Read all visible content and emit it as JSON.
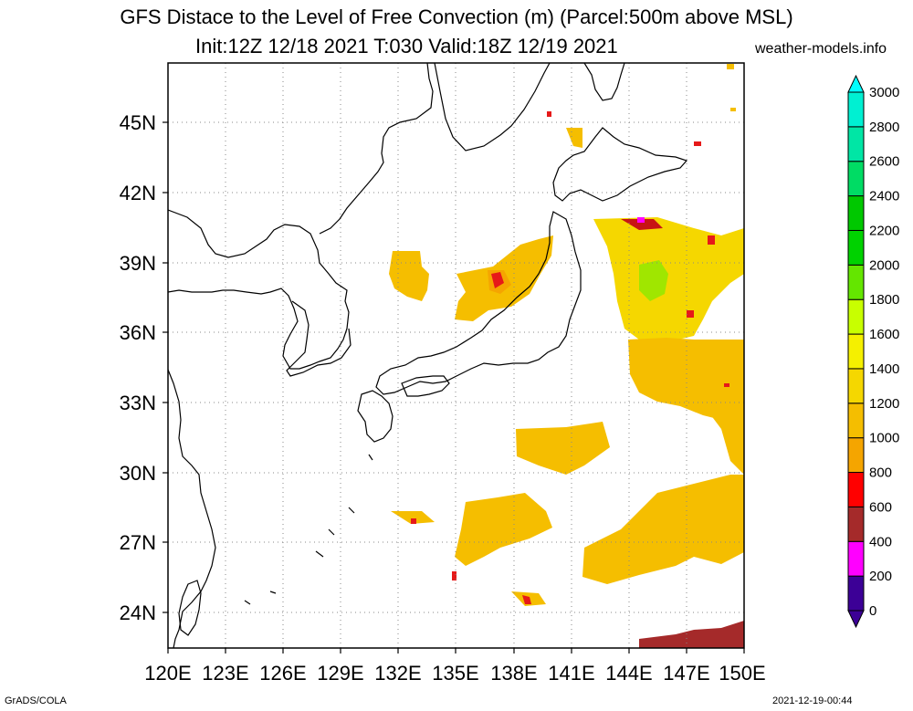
{
  "header": {
    "title_line1": "GFS Distace to the Level of Free Convection (m) (Parcel:500m above MSL)",
    "title_line2": "Init:12Z 12/18 2021 T:030 Valid:18Z 12/19 2021",
    "site": "weather-models.info"
  },
  "footer": {
    "left": "GrADS/COLA",
    "right": "2021-12-19-00:44"
  },
  "map": {
    "lon_labels": [
      "120E",
      "123E",
      "126E",
      "129E",
      "132E",
      "135E",
      "138E",
      "141E",
      "144E",
      "147E",
      "150E"
    ],
    "lat_labels": [
      "45N",
      "42N",
      "39N",
      "36N",
      "33N",
      "30N",
      "27N",
      "24N"
    ]
  },
  "colorbar": {
    "levels": [
      "0",
      "200",
      "400",
      "600",
      "800",
      "1000",
      "1200",
      "1400",
      "1600",
      "1800",
      "2000",
      "2200",
      "2400",
      "2600",
      "2800",
      "3000"
    ],
    "colors": [
      "#3c0096",
      "#ff00ff",
      "#a52a2a",
      "#ff0000",
      "#f5a500",
      "#f5be00",
      "#f5d700",
      "#f5f000",
      "#c8ff00",
      "#64e600",
      "#00d200",
      "#00c800",
      "#00dc64",
      "#00e6a5",
      "#00f0d2",
      "#00ffff"
    ]
  }
}
